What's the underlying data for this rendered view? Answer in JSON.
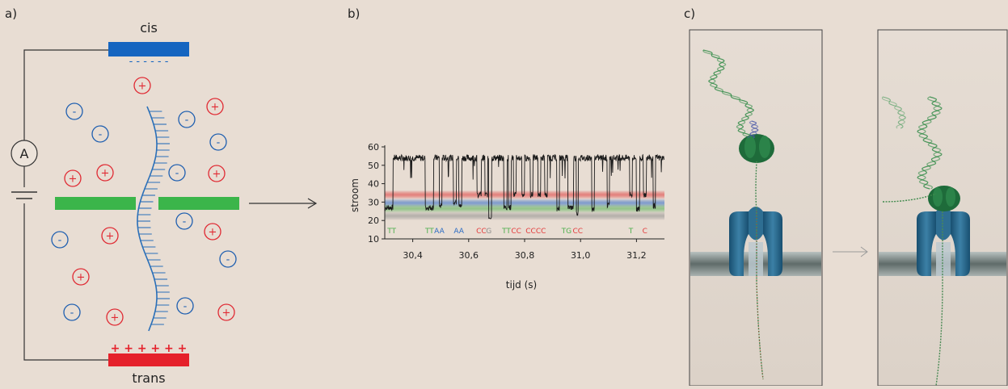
{
  "panels": {
    "a": {
      "label": "a)",
      "cis_label": "cis",
      "trans_label": "trans",
      "meter_label": "A",
      "cis_charge": "- - - - - -",
      "trans_charge": "+ + + + + +",
      "plus_symbol": "+",
      "minus_symbol": "-"
    },
    "b": {
      "label": "b)"
    },
    "c": {
      "label": "c)"
    }
  },
  "colors": {
    "background": "#e8ddd3",
    "negative_ion": "#1f5fb0",
    "positive_ion": "#e02a33",
    "membrane": "#3bb54a",
    "cis_electrode": "#1565c0",
    "trans_electrode": "#e5212b",
    "dna": "#2a6fb8",
    "pore": "#1f5f86",
    "helicase": "#1e6b3a"
  },
  "chart_data": {
    "type": "line",
    "ylabel": "stroom",
    "xlabel": "tijd (s)",
    "xlim": [
      30.3,
      31.3
    ],
    "ylim": [
      10,
      60
    ],
    "yticks": [
      10,
      20,
      30,
      40,
      50,
      60
    ],
    "xticks": [
      30.4,
      30.6,
      30.8,
      31.0,
      31.2
    ],
    "xtick_labels": [
      "30,4",
      "30,6",
      "30,8",
      "31,0",
      "31,2"
    ],
    "level_bands": [
      {
        "name": "C",
        "y": 34,
        "color": "#e33a3a"
      },
      {
        "name": "A",
        "y": 29.5,
        "color": "#2b6cc4"
      },
      {
        "name": "T",
        "y": 26.5,
        "color": "#4cae4c"
      },
      {
        "name": "G",
        "y": 22.5,
        "color": "#8c8c8c"
      }
    ],
    "open_level": 54,
    "blockade_events": [
      {
        "start": 30.3,
        "end": 30.33,
        "level": 27
      },
      {
        "start": 30.445,
        "end": 30.475,
        "level": 27
      },
      {
        "start": 30.495,
        "end": 30.505,
        "level": 28
      },
      {
        "start": 30.545,
        "end": 30.556,
        "level": 30
      },
      {
        "start": 30.565,
        "end": 30.575,
        "level": 28
      },
      {
        "start": 30.63,
        "end": 30.645,
        "level": 34
      },
      {
        "start": 30.658,
        "end": 30.668,
        "level": 34
      },
      {
        "start": 30.672,
        "end": 30.682,
        "level": 22
      },
      {
        "start": 30.725,
        "end": 30.737,
        "level": 27
      },
      {
        "start": 30.742,
        "end": 30.752,
        "level": 27
      },
      {
        "start": 30.76,
        "end": 30.77,
        "level": 34
      },
      {
        "start": 30.79,
        "end": 30.8,
        "level": 34
      },
      {
        "start": 30.82,
        "end": 30.83,
        "level": 34
      },
      {
        "start": 30.848,
        "end": 30.858,
        "level": 34
      },
      {
        "start": 30.872,
        "end": 30.882,
        "level": 34
      },
      {
        "start": 30.915,
        "end": 30.925,
        "level": 26
      },
      {
        "start": 30.955,
        "end": 30.975,
        "level": 27
      },
      {
        "start": 30.985,
        "end": 30.992,
        "level": 24
      },
      {
        "start": 31.04,
        "end": 31.05,
        "level": 26
      },
      {
        "start": 31.095,
        "end": 31.103,
        "level": 28
      },
      {
        "start": 31.175,
        "end": 31.185,
        "level": 34
      },
      {
        "start": 31.2,
        "end": 31.212,
        "level": 26
      },
      {
        "start": 31.225,
        "end": 31.236,
        "level": 34
      },
      {
        "start": 31.26,
        "end": 31.268,
        "level": 28
      }
    ],
    "base_labels": [
      {
        "text": "TT",
        "x": 30.325,
        "color": "#4cae4c"
      },
      {
        "text": "TT",
        "x": 30.46,
        "color": "#4cae4c"
      },
      {
        "text": "AA",
        "x": 30.495,
        "color": "#2b6cc4"
      },
      {
        "text": "AA",
        "x": 30.565,
        "color": "#2b6cc4"
      },
      {
        "text": "CC",
        "x": 30.645,
        "color": "#e33a3a"
      },
      {
        "text": "G",
        "x": 30.672,
        "color": "#8c8c8c"
      },
      {
        "text": "TT",
        "x": 30.735,
        "color": "#4cae4c"
      },
      {
        "text": "CC",
        "x": 30.77,
        "color": "#e33a3a"
      },
      {
        "text": "CCCC",
        "x": 30.84,
        "color": "#e33a3a"
      },
      {
        "text": "TG",
        "x": 30.95,
        "color": "#4cae4c"
      },
      {
        "text": "CC",
        "x": 30.99,
        "color": "#e33a3a"
      },
      {
        "text": "T",
        "x": 31.18,
        "color": "#4cae4c"
      },
      {
        "text": "C",
        "x": 31.23,
        "color": "#e33a3a"
      }
    ]
  }
}
